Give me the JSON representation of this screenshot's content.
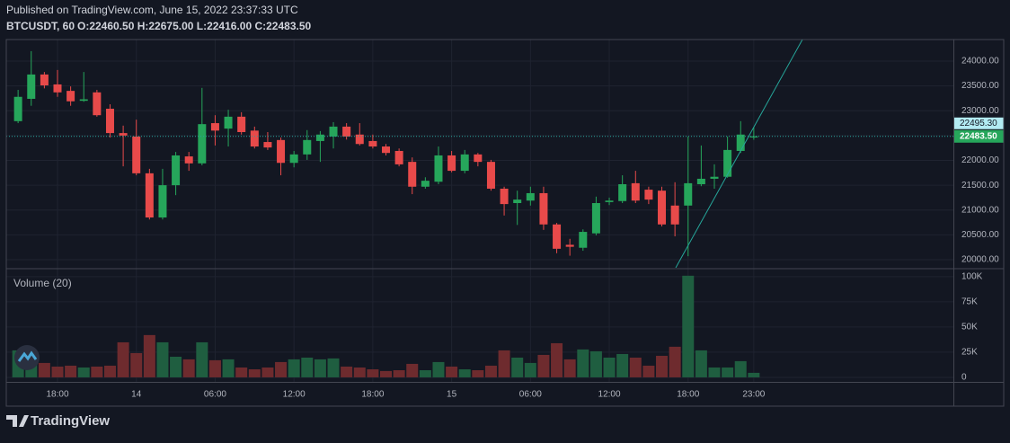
{
  "header": {
    "published": "Published on TradingView.com, June 15, 2022 23:37:33 UTC",
    "symbol": "BTCUSDT, 60",
    "ohlc": "O:22460.50 H:22675.00 L:22416.00 C:22483.50"
  },
  "footer": {
    "brand": "TradingView"
  },
  "chart_data": {
    "type": "candlestick",
    "categories": [
      null,
      null,
      null,
      "18:00",
      null,
      null,
      null,
      null,
      null,
      "14",
      null,
      null,
      null,
      null,
      null,
      "06:00",
      null,
      null,
      null,
      null,
      null,
      "12:00",
      null,
      null,
      null,
      null,
      null,
      "18:00",
      null,
      null,
      null,
      null,
      null,
      "15",
      null,
      null,
      null,
      null,
      null,
      "06:00",
      null,
      null,
      null,
      null,
      null,
      "12:00",
      null,
      null,
      null,
      null,
      null,
      "18:00",
      null,
      null,
      null,
      null,
      "23:00"
    ],
    "open": [
      22790,
      23240,
      23730,
      23530,
      23400,
      23200,
      23370,
      23040,
      22550,
      22480,
      21740,
      20850,
      21500,
      22080,
      21940,
      22750,
      22640,
      22880,
      22600,
      22370,
      22410,
      21950,
      22120,
      22390,
      22480,
      22680,
      22520,
      22390,
      22280,
      22190,
      21970,
      21470,
      21570,
      22100,
      21790,
      22120,
      21970,
      21430,
      21140,
      21190,
      21340,
      20710,
      20300,
      20240,
      20530,
      21160,
      21180,
      21540,
      21410,
      21390,
      21090,
      21090,
      21520,
      21630,
      21670,
      22190,
      22460.5
    ],
    "high": [
      23420,
      24200,
      23780,
      23820,
      23490,
      23780,
      23420,
      23130,
      22700,
      22820,
      21830,
      21830,
      22170,
      22170,
      23460,
      22910,
      23020,
      22970,
      22680,
      22570,
      22460,
      22190,
      22610,
      22590,
      22770,
      22750,
      22750,
      22520,
      22330,
      22240,
      22060,
      21660,
      22280,
      22190,
      22210,
      22150,
      22010,
      21470,
      21390,
      21470,
      21470,
      20740,
      20420,
      20610,
      21270,
      21250,
      21700,
      21790,
      21470,
      21470,
      21560,
      22480,
      22300,
      21920,
      22480,
      22790,
      22675
    ],
    "low": [
      22750,
      23100,
      23450,
      23280,
      23100,
      23180,
      22880,
      22460,
      21880,
      21700,
      20810,
      20810,
      21300,
      21790,
      21900,
      22300,
      22280,
      22520,
      22240,
      22210,
      21700,
      21860,
      22010,
      21970,
      22240,
      22420,
      22300,
      22240,
      22100,
      21880,
      21320,
      21430,
      21520,
      21760,
      21740,
      21880,
      21390,
      20890,
      20700,
      21090,
      20600,
      20130,
      20080,
      20180,
      20490,
      21100,
      21140,
      21140,
      21120,
      20670,
      20470,
      20070,
      21480,
      21430,
      21650,
      22150,
      22416
    ],
    "close": [
      23280,
      23730,
      23510,
      23370,
      23190,
      23230,
      22910,
      22550,
      22500,
      21740,
      20850,
      21500,
      22100,
      21940,
      22730,
      22600,
      22880,
      22570,
      22280,
      22260,
      21950,
      22120,
      22410,
      22520,
      22680,
      22480,
      22330,
      22280,
      22150,
      21920,
      21470,
      21590,
      22100,
      21790,
      22120,
      21970,
      21430,
      21120,
      21210,
      21340,
      20710,
      20220,
      20260,
      20560,
      21140,
      21190,
      21520,
      21190,
      21210,
      20710,
      20710,
      21540,
      21630,
      21670,
      22210,
      22520,
      22483.5
    ],
    "up_color": "#26a65b",
    "down_color": "#e84a4a",
    "ylim": [
      19837,
      24434
    ],
    "yticks": [
      {
        "value": 20000,
        "label": "20000.00"
      },
      {
        "value": 20500,
        "label": "20500.00"
      },
      {
        "value": 21000,
        "label": "21000.00"
      },
      {
        "value": 21500,
        "label": "21500.00"
      },
      {
        "value": 22000,
        "label": "22000.00"
      },
      {
        "value": 22500,
        "label": "22500.00"
      },
      {
        "value": 23000,
        "label": "23000.00"
      },
      {
        "value": 23500,
        "label": "23500.00"
      },
      {
        "value": 24000,
        "label": "24000.00"
      }
    ],
    "grid": true,
    "last_price": {
      "value": 22483.5,
      "label": "22483.50"
    },
    "marker_label": "22495.30",
    "volume": {
      "title": "Volume (20)",
      "values": [
        26800,
        20500,
        14300,
        10700,
        11600,
        9800,
        10700,
        11600,
        34800,
        24100,
        42000,
        34800,
        20500,
        17900,
        34800,
        17000,
        17900,
        9800,
        8000,
        9800,
        15200,
        17900,
        19600,
        17900,
        18800,
        10700,
        9800,
        8000,
        6300,
        7100,
        13400,
        7100,
        15200,
        10700,
        8000,
        7100,
        11600,
        26800,
        19600,
        14300,
        22300,
        33900,
        17900,
        27700,
        25900,
        19600,
        23200,
        19600,
        11600,
        21400,
        30400,
        100900,
        26800,
        9800,
        9800,
        16100,
        4500
      ],
      "up_color": "#1f5e40",
      "down_color": "#6e2b2e",
      "ylim": [
        -4500,
        107000
      ],
      "yticks": [
        0,
        {
          "value": 25000,
          "label": "25K"
        },
        {
          "value": 50000,
          "label": "50K"
        },
        {
          "value": 75000,
          "label": "75K"
        },
        {
          "value": 100000,
          "label": "100K"
        }
      ]
    }
  }
}
